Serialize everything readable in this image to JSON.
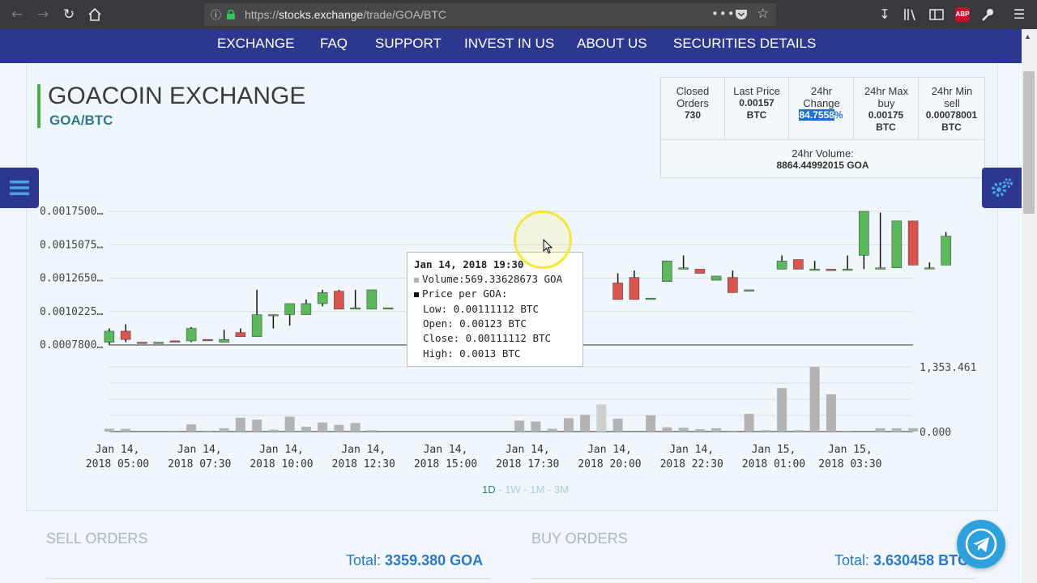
{
  "browser": {
    "url_prefix": "https://",
    "url_host": "stocks.exchange",
    "url_path": "/trade/GOA/BTC",
    "icons": [
      "back-icon",
      "forward-icon",
      "reload-icon",
      "home-icon",
      "info-icon",
      "lock-icon",
      "page-actions-icon",
      "pocket-icon",
      "bookmark-star-icon",
      "download-icon",
      "library-icon",
      "sidebar-icon",
      "adblock-icon",
      "extension-icon",
      "menu-icon"
    ],
    "abp_label": "ABP"
  },
  "nav": {
    "items": [
      "EXCHANGE",
      "FAQ",
      "SUPPORT",
      "INVEST IN US",
      "ABOUT US",
      "SECURITIES DETAILS"
    ]
  },
  "header": {
    "title": "GOACOIN EXCHANGE",
    "pair": "GOA/BTC"
  },
  "stats": {
    "closed_orders_label": "Closed Orders",
    "closed_orders_value": "730",
    "last_price_label": "Last Price",
    "last_price_value": "0.00157",
    "last_price_unit": "BTC",
    "change_label": "24hr Change",
    "change_value": "84.7558",
    "change_unit": "%",
    "max_buy_label": "24hr Max buy",
    "max_buy_value": "0.00175",
    "max_buy_unit": "BTC",
    "min_sell_label": "24hr Min sell",
    "min_sell_value": "0.00078001",
    "min_sell_unit": "BTC",
    "volume_label": "24hr Volume:",
    "volume_value": "8864.44992015 GOA"
  },
  "chart_data": {
    "type": "candlestick",
    "y_ticks": [
      "0.0017500…",
      "0.0015075…",
      "0.0012650…",
      "0.0010225…",
      "0.0007800…"
    ],
    "y_tick_values": [
      0.00175,
      0.0015075,
      0.001265,
      0.0010225,
      0.00078
    ],
    "volume_ticks": [
      "1,353.461",
      "0.000"
    ],
    "volume_max": 1353.461,
    "x_ticks": [
      [
        "Jan 14,",
        "2018 05:00"
      ],
      [
        "Jan 14,",
        "2018 07:30"
      ],
      [
        "Jan 14,",
        "2018 10:00"
      ],
      [
        "Jan 14,",
        "2018 12:30"
      ],
      [
        "Jan 14,",
        "2018 15:00"
      ],
      [
        "Jan 14,",
        "2018 17:30"
      ],
      [
        "Jan 14,",
        "2018 20:00"
      ],
      [
        "Jan 14,",
        "2018 22:30"
      ],
      [
        "Jan 15,",
        "2018 01:00"
      ],
      [
        "Jan 15,",
        "2018 03:30"
      ]
    ],
    "x_tick_hours": [
      0,
      2.5,
      5,
      7.5,
      10,
      12.5,
      15,
      17.5,
      20,
      22.33
    ],
    "interval_hours": 0.5,
    "candles": [
      {
        "t": -0.25,
        "o": 0.0008,
        "c": 0.00088,
        "h": 0.0009,
        "l": 0.00078
      },
      {
        "t": 0.25,
        "o": 0.00088,
        "c": 0.00082,
        "h": 0.00093,
        "l": 0.0008
      },
      {
        "t": 0.75,
        "o": 0.0008,
        "c": 0.00079,
        "h": 0.0008,
        "l": 0.00079
      },
      {
        "t": 1.25,
        "o": 0.00079,
        "c": 0.0008,
        "h": 0.0008,
        "l": 0.00079
      },
      {
        "t": 1.75,
        "o": 0.00081,
        "c": 0.0008,
        "h": 0.00081,
        "l": 0.0008
      },
      {
        "t": 2.25,
        "o": 0.00081,
        "c": 0.0009,
        "h": 0.00091,
        "l": 0.0008
      },
      {
        "t": 2.75,
        "o": 0.00082,
        "c": 0.00081,
        "h": 0.00082,
        "l": 0.00081
      },
      {
        "t": 3.25,
        "o": 0.0008,
        "c": 0.00082,
        "h": 0.00089,
        "l": 0.0008
      },
      {
        "t": 3.75,
        "o": 0.00087,
        "c": 0.00084,
        "h": 0.0009,
        "l": 0.00084
      },
      {
        "t": 4.25,
        "o": 0.00084,
        "c": 0.001,
        "h": 0.00118,
        "l": 0.00084
      },
      {
        "t": 4.75,
        "o": 0.001,
        "c": 0.001,
        "h": 0.001,
        "l": 0.0009
      },
      {
        "t": 5.25,
        "o": 0.001,
        "c": 0.00108,
        "h": 0.00108,
        "l": 0.00092
      },
      {
        "t": 5.75,
        "o": 0.001,
        "c": 0.00108,
        "h": 0.00111,
        "l": 0.001
      },
      {
        "t": 6.25,
        "o": 0.00108,
        "c": 0.00116,
        "h": 0.00118,
        "l": 0.00106
      },
      {
        "t": 6.75,
        "o": 0.00117,
        "c": 0.00104,
        "h": 0.00118,
        "l": 0.00104
      },
      {
        "t": 7.25,
        "o": 0.00104,
        "c": 0.00105,
        "h": 0.00118,
        "l": 0.00104
      },
      {
        "t": 7.75,
        "o": 0.00104,
        "c": 0.00118,
        "h": 0.00118,
        "l": 0.00104
      },
      {
        "t": 8.25,
        "o": 0.00104,
        "c": 0.00105,
        "h": 0.00105,
        "l": 0.00104
      },
      {
        "t": 15.25,
        "o": 0.00123,
        "c": 0.00111,
        "h": 0.0013,
        "l": 0.00111
      },
      {
        "t": 15.75,
        "o": 0.00127,
        "c": 0.00111,
        "h": 0.00132,
        "l": 0.00111
      },
      {
        "t": 16.25,
        "o": 0.00111,
        "c": 0.00112,
        "h": 0.00112,
        "l": 0.00111
      },
      {
        "t": 16.75,
        "o": 0.00124,
        "c": 0.00139,
        "h": 0.00139,
        "l": 0.00124
      },
      {
        "t": 17.25,
        "o": 0.00133,
        "c": 0.00134,
        "h": 0.00143,
        "l": 0.00133
      },
      {
        "t": 17.75,
        "o": 0.00133,
        "c": 0.0013,
        "h": 0.00133,
        "l": 0.0013
      },
      {
        "t": 18.25,
        "o": 0.00125,
        "c": 0.00128,
        "h": 0.00128,
        "l": 0.00125
      },
      {
        "t": 18.75,
        "o": 0.00127,
        "c": 0.00116,
        "h": 0.00132,
        "l": 0.00116
      },
      {
        "t": 19.25,
        "o": 0.00117,
        "c": 0.00118,
        "h": 0.00118,
        "l": 0.00117
      },
      {
        "t": 20.25,
        "o": 0.00133,
        "c": 0.00139,
        "h": 0.00143,
        "l": 0.00133
      },
      {
        "t": 20.75,
        "o": 0.0014,
        "c": 0.00133,
        "h": 0.0014,
        "l": 0.00133
      },
      {
        "t": 21.25,
        "o": 0.00133,
        "c": 0.00133,
        "h": 0.00139,
        "l": 0.00133
      },
      {
        "t": 21.75,
        "o": 0.00133,
        "c": 0.00132,
        "h": 0.00133,
        "l": 0.00132
      },
      {
        "t": 22.25,
        "o": 0.00133,
        "c": 0.00133,
        "h": 0.00143,
        "l": 0.00133
      },
      {
        "t": 22.75,
        "o": 0.00143,
        "c": 0.00175,
        "h": 0.00175,
        "l": 0.00133
      },
      {
        "t": 23.25,
        "o": 0.00133,
        "c": 0.00134,
        "h": 0.00174,
        "l": 0.00133
      },
      {
        "t": 23.75,
        "o": 0.00134,
        "c": 0.00168,
        "h": 0.00168,
        "l": 0.00134
      },
      {
        "t": 24.25,
        "o": 0.00168,
        "c": 0.00136,
        "h": 0.00168,
        "l": 0.00136
      },
      {
        "t": 24.75,
        "o": 0.00134,
        "c": 0.00134,
        "h": 0.00138,
        "l": 0.00134
      },
      {
        "t": 25.25,
        "o": 0.00136,
        "c": 0.00157,
        "h": 0.0016,
        "l": 0.00136
      }
    ],
    "volumes": [
      {
        "t": -0.25,
        "v": 60
      },
      {
        "t": 0.25,
        "v": 60
      },
      {
        "t": 1.75,
        "v": 20
      },
      {
        "t": 2.25,
        "v": 150
      },
      {
        "t": 2.75,
        "v": 20
      },
      {
        "t": 3.25,
        "v": 70
      },
      {
        "t": 3.75,
        "v": 290
      },
      {
        "t": 4.25,
        "v": 250
      },
      {
        "t": 4.75,
        "v": 40
      },
      {
        "t": 5.25,
        "v": 310
      },
      {
        "t": 5.75,
        "v": 100
      },
      {
        "t": 6.25,
        "v": 190
      },
      {
        "t": 6.75,
        "v": 140
      },
      {
        "t": 7.25,
        "v": 180
      },
      {
        "t": 7.75,
        "v": 30
      },
      {
        "t": 12.25,
        "v": 230
      },
      {
        "t": 12.75,
        "v": 210
      },
      {
        "t": 13.25,
        "v": 60
      },
      {
        "t": 13.75,
        "v": 280
      },
      {
        "t": 14.25,
        "v": 350
      },
      {
        "t": 14.75,
        "v": 569.33628673
      },
      {
        "t": 15.25,
        "v": 270
      },
      {
        "t": 16.25,
        "v": 340
      },
      {
        "t": 16.75,
        "v": 90
      },
      {
        "t": 17.25,
        "v": 80
      },
      {
        "t": 17.75,
        "v": 50
      },
      {
        "t": 18.25,
        "v": 70
      },
      {
        "t": 18.75,
        "v": 20
      },
      {
        "t": 19.25,
        "v": 370
      },
      {
        "t": 19.75,
        "v": 30
      },
      {
        "t": 20.25,
        "v": 910
      },
      {
        "t": 20.75,
        "v": 30
      },
      {
        "t": 21.25,
        "v": 1353.461
      },
      {
        "t": 21.75,
        "v": 780
      },
      {
        "t": 22.25,
        "v": 20
      },
      {
        "t": 23.25,
        "v": 70
      },
      {
        "t": 23.75,
        "v": 70
      },
      {
        "t": 24.25,
        "v": 70
      }
    ],
    "highlighted_t": 14.75,
    "tooltip": {
      "date": "Jan 14, 2018 19:30",
      "volume": "Volume:569.33628673 GOA",
      "price_header": "Price per GOA:",
      "low": "Low: 0.00111112 BTC",
      "open": "Open: 0.00123 BTC",
      "close": "Close: 0.00111112 BTC",
      "high": "High: 0.0013 BTC"
    },
    "colors": {
      "up": "#5cb85c",
      "down": "#d9534f",
      "volume": "#b3b3b3",
      "volume_hl": "#cfcfcf"
    }
  },
  "range": {
    "options": [
      "1D",
      "1W",
      "1M",
      "3M"
    ],
    "active": "1D",
    "sep": " - "
  },
  "orders": {
    "sell_title": "SELL ORDERS",
    "sell_total_label": "Total: ",
    "sell_total_value": "3359.380 GOA",
    "buy_title": "BUY ORDERS",
    "buy_total_label": "Total: ",
    "buy_total_value": "3.630458 BTC"
  },
  "colors": {
    "nav": "#2c3790",
    "accent": "#2b78c4",
    "title_bar": "#4fae4f",
    "telegram": "#2ea1dd"
  }
}
